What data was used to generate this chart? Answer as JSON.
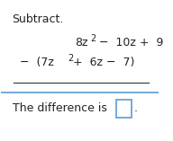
{
  "title": "Subtract.",
  "line1": "8z² −  10z +  9",
  "line2": "−  (7z² +  6z −  7)",
  "bottom_text": "The difference is",
  "background_color": "#ffffff",
  "text_color": "#222222",
  "line_color": "#5b9bd5",
  "box_color": "#5b9bd5",
  "title_fontsize": 9,
  "body_fontsize": 9,
  "math_fontsize": 9
}
